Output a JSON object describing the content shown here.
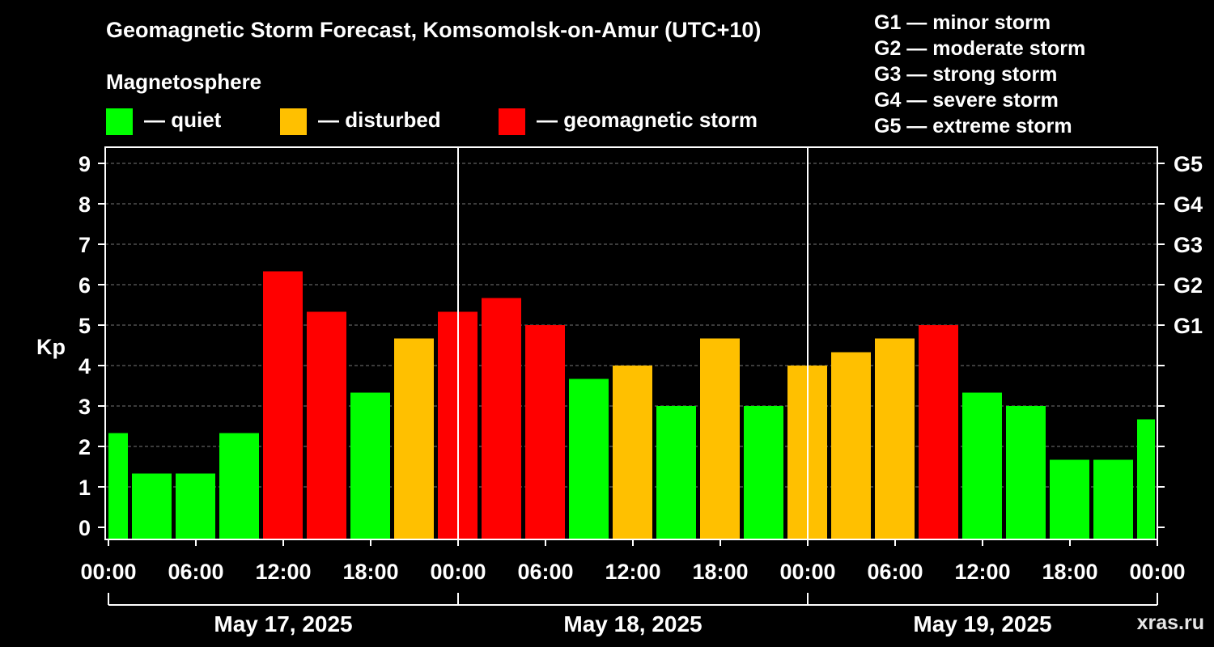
{
  "title": "Geomagnetic Storm Forecast, Komsomolsk-on-Amur (UTC+10)",
  "legend": {
    "heading": "Magnetosphere",
    "items": [
      {
        "label": "— quiet",
        "color": "#00ff00"
      },
      {
        "label": "— disturbed",
        "color": "#ffc000"
      },
      {
        "label": "— geomagnetic storm",
        "color": "#ff0000"
      }
    ]
  },
  "g_legend": [
    "G1 — minor storm",
    "G2 — moderate storm",
    "G3 — strong storm",
    "G4 — severe storm",
    "G5 — extreme storm"
  ],
  "footer": "xras.ru",
  "chart_data": {
    "type": "bar",
    "ylabel": "Kp",
    "ylim": [
      0,
      9
    ],
    "y_ticks": [
      0,
      1,
      2,
      3,
      4,
      5,
      6,
      7,
      8,
      9
    ],
    "right_ticks": [
      {
        "kp": 5,
        "label": "G1"
      },
      {
        "kp": 6,
        "label": "G2"
      },
      {
        "kp": 7,
        "label": "G3"
      },
      {
        "kp": 8,
        "label": "G4"
      },
      {
        "kp": 9,
        "label": "G5"
      }
    ],
    "x_tick_labels": [
      "00:00",
      "06:00",
      "12:00",
      "18:00",
      "00:00",
      "06:00",
      "12:00",
      "18:00",
      "00:00",
      "06:00",
      "12:00",
      "18:00",
      "00:00"
    ],
    "days": [
      "May 17, 2025",
      "May 18, 2025",
      "May 19, 2025"
    ],
    "grid": true,
    "bar_interval_hours": 3,
    "values": [
      2.33,
      1.33,
      1.33,
      2.33,
      6.33,
      5.33,
      3.33,
      4.67,
      5.33,
      5.67,
      5.0,
      3.67,
      4.0,
      3.0,
      4.67,
      3.0,
      4.0,
      4.33,
      4.67,
      5.0,
      3.33,
      3.0,
      1.67,
      1.67,
      2.67
    ],
    "levels": [
      "quiet",
      "quiet",
      "quiet",
      "quiet",
      "storm",
      "storm",
      "quiet",
      "disturbed",
      "storm",
      "storm",
      "storm",
      "quiet",
      "disturbed",
      "quiet",
      "disturbed",
      "quiet",
      "disturbed",
      "disturbed",
      "disturbed",
      "storm",
      "quiet",
      "quiet",
      "quiet",
      "quiet",
      "quiet"
    ],
    "level_colors": {
      "quiet": "#00ff00",
      "disturbed": "#ffc000",
      "storm": "#ff0000"
    }
  }
}
